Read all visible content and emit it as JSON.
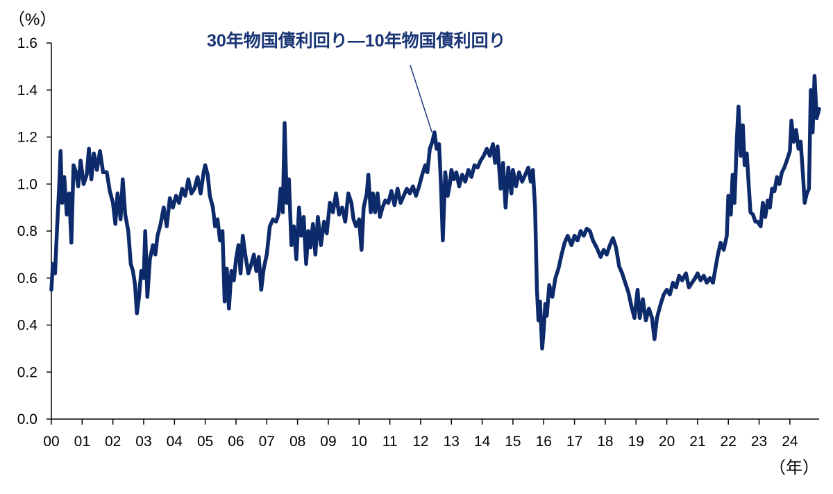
{
  "chart_data": {
    "type": "line",
    "title": "",
    "xlabel": "（年）",
    "ylabel": "（%）",
    "ylim": [
      0,
      1.6
    ],
    "y_ticks": [
      "0.0",
      "0.2",
      "0.4",
      "0.6",
      "0.8",
      "1.0",
      "1.2",
      "1.4",
      "1.6"
    ],
    "x_ticks": [
      "00",
      "01",
      "02",
      "03",
      "04",
      "05",
      "06",
      "07",
      "08",
      "09",
      "10",
      "11",
      "12",
      "13",
      "14",
      "15",
      "16",
      "17",
      "18",
      "19",
      "20",
      "21",
      "22",
      "23",
      "24"
    ],
    "xlim": [
      2000.0,
      2024.95
    ],
    "grid": false,
    "legend": "none",
    "annotation": "30年物国債利回り―10年物国債利回り",
    "colors": {
      "line": "#0d2a6b",
      "annotation_text": "#1a3575",
      "axis": "#000000"
    },
    "series": [
      {
        "name": "30年物国債利回り―10年物国債利回り",
        "points": [
          [
            2000.0,
            0.55
          ],
          [
            2000.05,
            0.66
          ],
          [
            2000.12,
            0.62
          ],
          [
            2000.18,
            0.8
          ],
          [
            2000.25,
            0.98
          ],
          [
            2000.3,
            1.14
          ],
          [
            2000.35,
            0.92
          ],
          [
            2000.42,
            1.03
          ],
          [
            2000.5,
            0.87
          ],
          [
            2000.58,
            0.96
          ],
          [
            2000.65,
            0.75
          ],
          [
            2000.72,
            1.08
          ],
          [
            2000.8,
            1.05
          ],
          [
            2000.87,
            0.99
          ],
          [
            2000.95,
            1.1
          ],
          [
            2001.05,
            1.0
          ],
          [
            2001.15,
            1.04
          ],
          [
            2001.22,
            1.15
          ],
          [
            2001.3,
            1.02
          ],
          [
            2001.38,
            1.13
          ],
          [
            2001.48,
            1.06
          ],
          [
            2001.58,
            1.14
          ],
          [
            2001.68,
            1.05
          ],
          [
            2001.8,
            1.05
          ],
          [
            2001.9,
            0.97
          ],
          [
            2002.0,
            0.92
          ],
          [
            2002.08,
            0.83
          ],
          [
            2002.15,
            0.96
          ],
          [
            2002.25,
            0.85
          ],
          [
            2002.32,
            1.02
          ],
          [
            2002.4,
            0.87
          ],
          [
            2002.5,
            0.8
          ],
          [
            2002.58,
            0.66
          ],
          [
            2002.65,
            0.63
          ],
          [
            2002.72,
            0.57
          ],
          [
            2002.78,
            0.45
          ],
          [
            2002.85,
            0.52
          ],
          [
            2002.92,
            0.63
          ],
          [
            2003.0,
            0.6
          ],
          [
            2003.05,
            0.8
          ],
          [
            2003.12,
            0.52
          ],
          [
            2003.2,
            0.68
          ],
          [
            2003.3,
            0.74
          ],
          [
            2003.38,
            0.7
          ],
          [
            2003.45,
            0.78
          ],
          [
            2003.55,
            0.83
          ],
          [
            2003.65,
            0.9
          ],
          [
            2003.75,
            0.82
          ],
          [
            2003.85,
            0.94
          ],
          [
            2003.95,
            0.9
          ],
          [
            2004.05,
            0.95
          ],
          [
            2004.15,
            0.92
          ],
          [
            2004.25,
            0.98
          ],
          [
            2004.35,
            0.95
          ],
          [
            2004.45,
            1.02
          ],
          [
            2004.55,
            0.96
          ],
          [
            2004.65,
            0.98
          ],
          [
            2004.75,
            1.03
          ],
          [
            2004.85,
            0.96
          ],
          [
            2004.95,
            1.05
          ],
          [
            2005.0,
            1.08
          ],
          [
            2005.08,
            1.04
          ],
          [
            2005.15,
            0.95
          ],
          [
            2005.25,
            0.9
          ],
          [
            2005.32,
            0.82
          ],
          [
            2005.4,
            0.85
          ],
          [
            2005.48,
            0.76
          ],
          [
            2005.56,
            0.8
          ],
          [
            2005.63,
            0.5
          ],
          [
            2005.7,
            0.64
          ],
          [
            2005.77,
            0.47
          ],
          [
            2005.85,
            0.63
          ],
          [
            2005.93,
            0.59
          ],
          [
            2006.0,
            0.68
          ],
          [
            2006.08,
            0.74
          ],
          [
            2006.15,
            0.62
          ],
          [
            2006.22,
            0.78
          ],
          [
            2006.3,
            0.7
          ],
          [
            2006.4,
            0.62
          ],
          [
            2006.5,
            0.66
          ],
          [
            2006.58,
            0.7
          ],
          [
            2006.66,
            0.63
          ],
          [
            2006.74,
            0.69
          ],
          [
            2006.82,
            0.55
          ],
          [
            2006.9,
            0.64
          ],
          [
            2007.0,
            0.7
          ],
          [
            2007.1,
            0.82
          ],
          [
            2007.2,
            0.85
          ],
          [
            2007.3,
            0.84
          ],
          [
            2007.38,
            0.87
          ],
          [
            2007.45,
            0.98
          ],
          [
            2007.52,
            0.88
          ],
          [
            2007.58,
            1.26
          ],
          [
            2007.65,
            0.92
          ],
          [
            2007.72,
            1.02
          ],
          [
            2007.8,
            0.74
          ],
          [
            2007.88,
            0.82
          ],
          [
            2007.96,
            0.68
          ],
          [
            2008.05,
            0.9
          ],
          [
            2008.12,
            0.78
          ],
          [
            2008.2,
            0.86
          ],
          [
            2008.28,
            0.66
          ],
          [
            2008.35,
            0.8
          ],
          [
            2008.42,
            0.73
          ],
          [
            2008.5,
            0.83
          ],
          [
            2008.58,
            0.7
          ],
          [
            2008.66,
            0.86
          ],
          [
            2008.76,
            0.74
          ],
          [
            2008.86,
            0.84
          ],
          [
            2008.95,
            0.79
          ],
          [
            2009.05,
            0.92
          ],
          [
            2009.15,
            0.88
          ],
          [
            2009.25,
            0.96
          ],
          [
            2009.35,
            0.87
          ],
          [
            2009.45,
            0.9
          ],
          [
            2009.55,
            0.84
          ],
          [
            2009.65,
            0.96
          ],
          [
            2009.75,
            0.92
          ],
          [
            2009.82,
            0.85
          ],
          [
            2009.9,
            0.82
          ],
          [
            2010.0,
            0.85
          ],
          [
            2010.08,
            0.72
          ],
          [
            2010.15,
            0.9
          ],
          [
            2010.25,
            0.96
          ],
          [
            2010.3,
            1.04
          ],
          [
            2010.38,
            0.88
          ],
          [
            2010.45,
            0.96
          ],
          [
            2010.52,
            0.88
          ],
          [
            2010.6,
            0.96
          ],
          [
            2010.68,
            0.86
          ],
          [
            2010.76,
            0.9
          ],
          [
            2010.85,
            0.93
          ],
          [
            2010.95,
            0.92
          ],
          [
            2011.05,
            0.97
          ],
          [
            2011.15,
            0.91
          ],
          [
            2011.25,
            0.98
          ],
          [
            2011.35,
            0.92
          ],
          [
            2011.45,
            0.95
          ],
          [
            2011.55,
            0.98
          ],
          [
            2011.65,
            0.96
          ],
          [
            2011.75,
            0.99
          ],
          [
            2011.85,
            0.95
          ],
          [
            2011.95,
            0.99
          ],
          [
            2012.05,
            1.04
          ],
          [
            2012.15,
            1.08
          ],
          [
            2012.22,
            1.05
          ],
          [
            2012.3,
            1.15
          ],
          [
            2012.38,
            1.18
          ],
          [
            2012.45,
            1.22
          ],
          [
            2012.52,
            1.15
          ],
          [
            2012.6,
            1.17
          ],
          [
            2012.66,
            1.0
          ],
          [
            2012.72,
            0.76
          ],
          [
            2012.8,
            1.05
          ],
          [
            2012.88,
            0.95
          ],
          [
            2012.95,
            1.0
          ],
          [
            2013.0,
            1.06
          ],
          [
            2013.08,
            1.02
          ],
          [
            2013.16,
            1.05
          ],
          [
            2013.25,
            0.99
          ],
          [
            2013.35,
            1.04
          ],
          [
            2013.45,
            1.01
          ],
          [
            2013.55,
            1.06
          ],
          [
            2013.65,
            1.03
          ],
          [
            2013.75,
            1.08
          ],
          [
            2013.85,
            1.07
          ],
          [
            2013.95,
            1.1
          ],
          [
            2014.05,
            1.12
          ],
          [
            2014.15,
            1.15
          ],
          [
            2014.25,
            1.12
          ],
          [
            2014.35,
            1.17
          ],
          [
            2014.42,
            1.09
          ],
          [
            2014.5,
            1.16
          ],
          [
            2014.6,
            0.98
          ],
          [
            2014.68,
            1.09
          ],
          [
            2014.76,
            0.9
          ],
          [
            2014.85,
            1.07
          ],
          [
            2014.95,
            0.96
          ],
          [
            2015.0,
            1.06
          ],
          [
            2015.1,
            0.99
          ],
          [
            2015.2,
            1.05
          ],
          [
            2015.3,
            1.01
          ],
          [
            2015.4,
            1.04
          ],
          [
            2015.5,
            1.07
          ],
          [
            2015.58,
            1.01
          ],
          [
            2015.65,
            1.06
          ],
          [
            2015.72,
            0.9
          ],
          [
            2015.78,
            0.55
          ],
          [
            2015.83,
            0.42
          ],
          [
            2015.88,
            0.5
          ],
          [
            2015.95,
            0.3
          ],
          [
            2016.0,
            0.38
          ],
          [
            2016.05,
            0.49
          ],
          [
            2016.1,
            0.44
          ],
          [
            2016.18,
            0.57
          ],
          [
            2016.28,
            0.52
          ],
          [
            2016.38,
            0.6
          ],
          [
            2016.48,
            0.64
          ],
          [
            2016.58,
            0.7
          ],
          [
            2016.68,
            0.75
          ],
          [
            2016.78,
            0.78
          ],
          [
            2016.9,
            0.74
          ],
          [
            2017.0,
            0.78
          ],
          [
            2017.1,
            0.76
          ],
          [
            2017.2,
            0.8
          ],
          [
            2017.3,
            0.78
          ],
          [
            2017.4,
            0.81
          ],
          [
            2017.5,
            0.8
          ],
          [
            2017.6,
            0.76
          ],
          [
            2017.72,
            0.73
          ],
          [
            2017.85,
            0.69
          ],
          [
            2017.95,
            0.72
          ],
          [
            2018.05,
            0.7
          ],
          [
            2018.15,
            0.74
          ],
          [
            2018.25,
            0.77
          ],
          [
            2018.35,
            0.73
          ],
          [
            2018.45,
            0.65
          ],
          [
            2018.55,
            0.62
          ],
          [
            2018.65,
            0.58
          ],
          [
            2018.75,
            0.54
          ],
          [
            2018.85,
            0.48
          ],
          [
            2018.95,
            0.43
          ],
          [
            2019.05,
            0.55
          ],
          [
            2019.12,
            0.43
          ],
          [
            2019.22,
            0.51
          ],
          [
            2019.32,
            0.42
          ],
          [
            2019.42,
            0.47
          ],
          [
            2019.52,
            0.43
          ],
          [
            2019.6,
            0.34
          ],
          [
            2019.68,
            0.43
          ],
          [
            2019.78,
            0.48
          ],
          [
            2019.9,
            0.53
          ],
          [
            2020.0,
            0.55
          ],
          [
            2020.1,
            0.53
          ],
          [
            2020.2,
            0.58
          ],
          [
            2020.3,
            0.56
          ],
          [
            2020.4,
            0.61
          ],
          [
            2020.5,
            0.59
          ],
          [
            2020.62,
            0.62
          ],
          [
            2020.72,
            0.56
          ],
          [
            2020.82,
            0.58
          ],
          [
            2020.92,
            0.6
          ],
          [
            2021.0,
            0.62
          ],
          [
            2021.1,
            0.59
          ],
          [
            2021.2,
            0.61
          ],
          [
            2021.3,
            0.58
          ],
          [
            2021.4,
            0.6
          ],
          [
            2021.5,
            0.58
          ],
          [
            2021.58,
            0.64
          ],
          [
            2021.66,
            0.7
          ],
          [
            2021.75,
            0.75
          ],
          [
            2021.85,
            0.72
          ],
          [
            2021.95,
            0.78
          ],
          [
            2022.0,
            0.95
          ],
          [
            2022.08,
            0.87
          ],
          [
            2022.14,
            1.04
          ],
          [
            2022.2,
            0.92
          ],
          [
            2022.28,
            1.2
          ],
          [
            2022.33,
            1.33
          ],
          [
            2022.4,
            1.12
          ],
          [
            2022.47,
            1.25
          ],
          [
            2022.53,
            1.08
          ],
          [
            2022.6,
            1.13
          ],
          [
            2022.66,
            1.0
          ],
          [
            2022.72,
            0.88
          ],
          [
            2022.8,
            0.87
          ],
          [
            2022.88,
            0.84
          ],
          [
            2022.95,
            0.84
          ],
          [
            2023.05,
            0.82
          ],
          [
            2023.12,
            0.92
          ],
          [
            2023.2,
            0.86
          ],
          [
            2023.28,
            0.93
          ],
          [
            2023.35,
            0.9
          ],
          [
            2023.42,
            0.98
          ],
          [
            2023.5,
            0.97
          ],
          [
            2023.58,
            1.03
          ],
          [
            2023.66,
            1.0
          ],
          [
            2023.74,
            1.05
          ],
          [
            2023.82,
            1.07
          ],
          [
            2023.9,
            1.1
          ],
          [
            2024.0,
            1.14
          ],
          [
            2024.05,
            1.27
          ],
          [
            2024.12,
            1.18
          ],
          [
            2024.2,
            1.23
          ],
          [
            2024.28,
            1.15
          ],
          [
            2024.35,
            1.18
          ],
          [
            2024.42,
            1.05
          ],
          [
            2024.48,
            0.92
          ],
          [
            2024.55,
            0.96
          ],
          [
            2024.62,
            0.98
          ],
          [
            2024.68,
            1.4
          ],
          [
            2024.74,
            1.22
          ],
          [
            2024.8,
            1.46
          ],
          [
            2024.87,
            1.28
          ],
          [
            2024.95,
            1.32
          ]
        ]
      }
    ]
  }
}
